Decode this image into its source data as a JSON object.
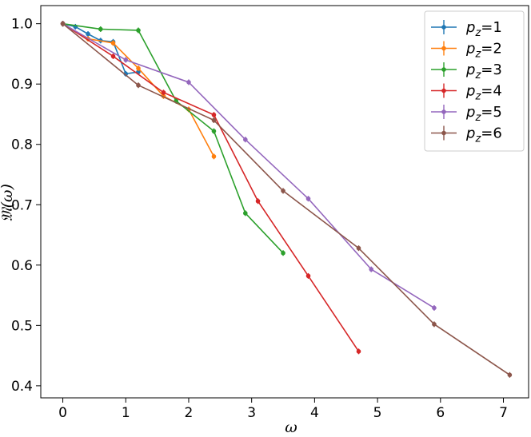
{
  "chart_data": {
    "type": "line",
    "xlabel": "ω",
    "ylabel": "𝔐(ω)",
    "xlim": [
      -0.35,
      7.4
    ],
    "ylim": [
      0.38,
      1.03
    ],
    "xticks": [
      0,
      1,
      2,
      3,
      4,
      5,
      6,
      7
    ],
    "yticks": [
      0.4,
      0.5,
      0.6,
      0.7,
      0.8,
      0.9,
      1.0
    ],
    "xtick_labels": [
      "0",
      "1",
      "2",
      "3",
      "4",
      "5",
      "6",
      "7"
    ],
    "ytick_labels": [
      "0.4",
      "0.5",
      "0.6",
      "0.7",
      "0.8",
      "0.9",
      "1.0"
    ],
    "grid": false,
    "legend_position": "top-right",
    "series": [
      {
        "name": "p_z=1",
        "legend_base": "p",
        "legend_sub": "z",
        "legend_suffix": "=1",
        "color": "#1f77b4",
        "x": [
          0,
          0.2,
          0.4,
          0.6,
          0.8,
          1.0,
          1.2
        ],
        "y": [
          1.0,
          0.995,
          0.983,
          0.972,
          0.97,
          0.917,
          0.92
        ]
      },
      {
        "name": "p_z=2",
        "legend_base": "p",
        "legend_sub": "z",
        "legend_suffix": "=2",
        "color": "#ff7f0e",
        "x": [
          0,
          0.4,
          0.8,
          1.2,
          1.6,
          2.0,
          2.4
        ],
        "y": [
          1.0,
          0.975,
          0.968,
          0.926,
          0.88,
          0.858,
          0.78
        ]
      },
      {
        "name": "p_z=3",
        "legend_base": "p",
        "legend_sub": "z",
        "legend_suffix": "=3",
        "color": "#2ca02c",
        "x": [
          0,
          0.6,
          1.2,
          1.8,
          2.4,
          2.9,
          3.5
        ],
        "y": [
          1.0,
          0.991,
          0.989,
          0.872,
          0.822,
          0.686,
          0.62
        ]
      },
      {
        "name": "p_z=4",
        "legend_base": "p",
        "legend_sub": "z",
        "legend_suffix": "=4",
        "color": "#d62728",
        "x": [
          0,
          0.8,
          1.6,
          2.4,
          3.1,
          3.9,
          4.7
        ],
        "y": [
          1.0,
          0.946,
          0.886,
          0.849,
          0.706,
          0.582,
          0.457
        ]
      },
      {
        "name": "p_z=5",
        "legend_base": "p",
        "legend_sub": "z",
        "legend_suffix": "=5",
        "color": "#9467bd",
        "x": [
          0,
          1.0,
          2.0,
          2.9,
          3.9,
          4.9,
          5.9
        ],
        "y": [
          1.0,
          0.94,
          0.903,
          0.808,
          0.71,
          0.593,
          0.529
        ]
      },
      {
        "name": "p_z=6",
        "legend_base": "p",
        "legend_sub": "z",
        "legend_suffix": "=6",
        "color": "#8c564b",
        "x": [
          0,
          1.2,
          2.4,
          3.5,
          4.7,
          5.9,
          7.1
        ],
        "y": [
          1.0,
          0.898,
          0.84,
          0.723,
          0.628,
          0.502,
          0.418
        ]
      }
    ]
  }
}
